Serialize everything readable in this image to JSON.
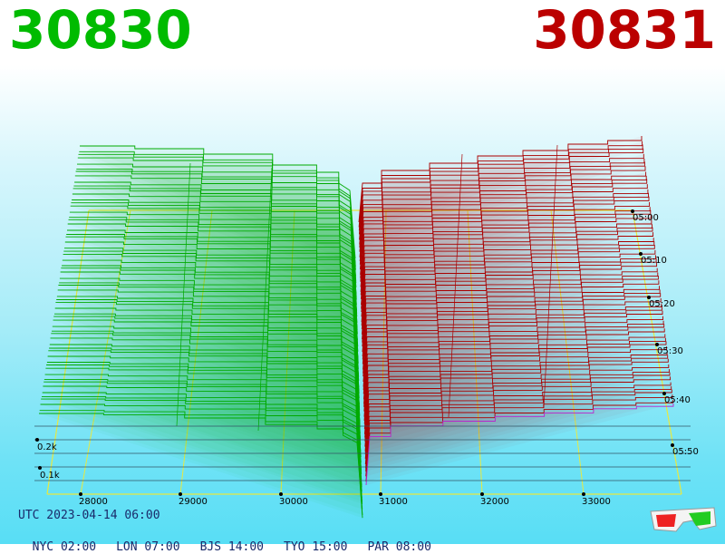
{
  "header": {
    "left_price": "30830",
    "right_price": "30831",
    "left_color": "#00bb00",
    "right_color": "#bb0000"
  },
  "footer": {
    "utc": "UTC 2023-04-14 06:00",
    "cities": [
      {
        "label": "NYC 02:00"
      },
      {
        "label": "LON 07:00"
      },
      {
        "label": "BJS 14:00"
      },
      {
        "label": "TYO 15:00"
      },
      {
        "label": "PAR 08:00"
      }
    ]
  },
  "icon": "3d-glasses-icon",
  "chart_data": {
    "type": "area",
    "description_type": "3d-order-book-depth",
    "price_ticks": [
      "28000",
      "29000",
      "30000",
      "31000",
      "32000",
      "33000"
    ],
    "volume_ticks": [
      "0.1k",
      "0.2k"
    ],
    "time_ticks": [
      "05:00",
      "05:10",
      "05:20",
      "05:30",
      "05:40",
      "05:50"
    ],
    "bid_color": "#00aa00",
    "ask_color": "#aa0000",
    "grid_color": "#e8e840",
    "mid_price": 30830.5
  }
}
